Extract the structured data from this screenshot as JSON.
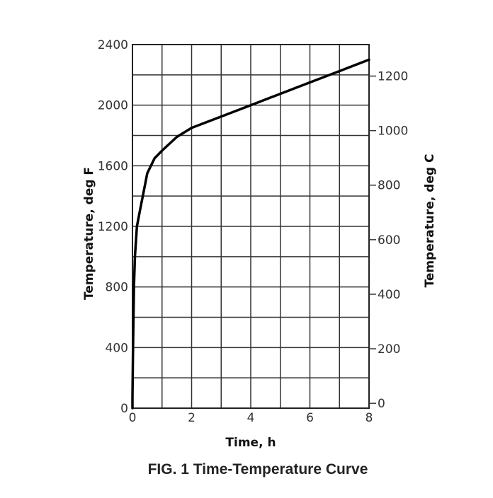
{
  "chart_data": {
    "type": "line",
    "title": "FIG. 1  Time-Temperature Curve",
    "xlabel": "Time, h",
    "ylabel": "Temperature, deg F",
    "ylabel_right": "Temperature, deg C",
    "xlim": [
      0,
      8
    ],
    "ylim": [
      0,
      2400
    ],
    "ylim_right_note": "deg C secondary axis aligned with deg F",
    "grid": true,
    "x_ticks": [
      0,
      2,
      4,
      6,
      8
    ],
    "y_ticks": [
      0,
      400,
      800,
      1200,
      1600,
      2000,
      2400
    ],
    "y_right_ticks": [
      0,
      200,
      400,
      600,
      800,
      1000,
      1200
    ],
    "series": [
      {
        "name": "Time-Temperature Curve",
        "x": [
          0,
          0.02,
          0.05,
          0.083,
          0.15,
          0.25,
          0.4,
          0.5,
          0.75,
          1,
          1.5,
          2,
          3,
          4,
          5,
          6,
          7,
          8
        ],
        "values": [
          68,
          400,
          800,
          1000,
          1200,
          1300,
          1450,
          1550,
          1650,
          1700,
          1790,
          1850,
          1925,
          2000,
          2075,
          2150,
          2225,
          2300
        ]
      }
    ]
  },
  "labels": {
    "x_axis": "Time, h",
    "y_axis_left": "Temperature, deg F",
    "y_axis_right": "Temperature, deg C",
    "caption": "FIG. 1  Time-Temperature Curve"
  }
}
